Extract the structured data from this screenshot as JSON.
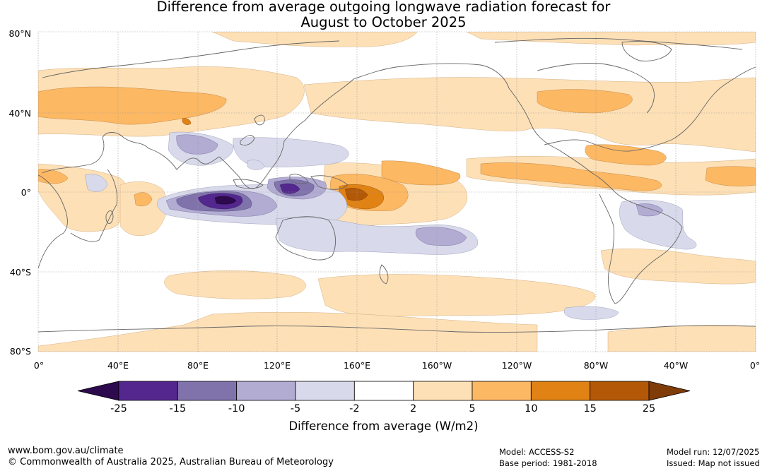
{
  "title_line1": "Difference from average outgoing longwave radiation forecast for",
  "title_line2": "August to October 2025",
  "map": {
    "lat_labels": [
      "80°N",
      "40°N",
      "0°",
      "40°S",
      "80°S"
    ],
    "lon_labels": [
      "0°",
      "40°E",
      "80°E",
      "120°E",
      "160°E",
      "160°W",
      "120°W",
      "80°W",
      "40°W",
      "0°"
    ]
  },
  "colorbar": {
    "title": "Difference from average (W/m2)",
    "tick_labels": [
      "-25",
      "-15",
      "-10",
      "-5",
      "-2",
      "2",
      "5",
      "10",
      "15",
      "25"
    ],
    "colors": [
      "#2d0a4e",
      "#54278f",
      "#8073ac",
      "#b2abd2",
      "#d8daeb",
      "#ffffff",
      "#fee0b6",
      "#fdb863",
      "#e08214",
      "#b35806",
      "#7f3b08"
    ]
  },
  "footer": {
    "website": "www.bom.gov.au/climate",
    "copyright": "© Commonwealth of Australia 2025, Australian Bureau of Meteorology",
    "model": "Model: ACCESS-S2",
    "base_period": "Base period: 1981-2018",
    "model_run": "Model run: 12/07/2025",
    "issued": "Issued: Map not issued"
  }
}
